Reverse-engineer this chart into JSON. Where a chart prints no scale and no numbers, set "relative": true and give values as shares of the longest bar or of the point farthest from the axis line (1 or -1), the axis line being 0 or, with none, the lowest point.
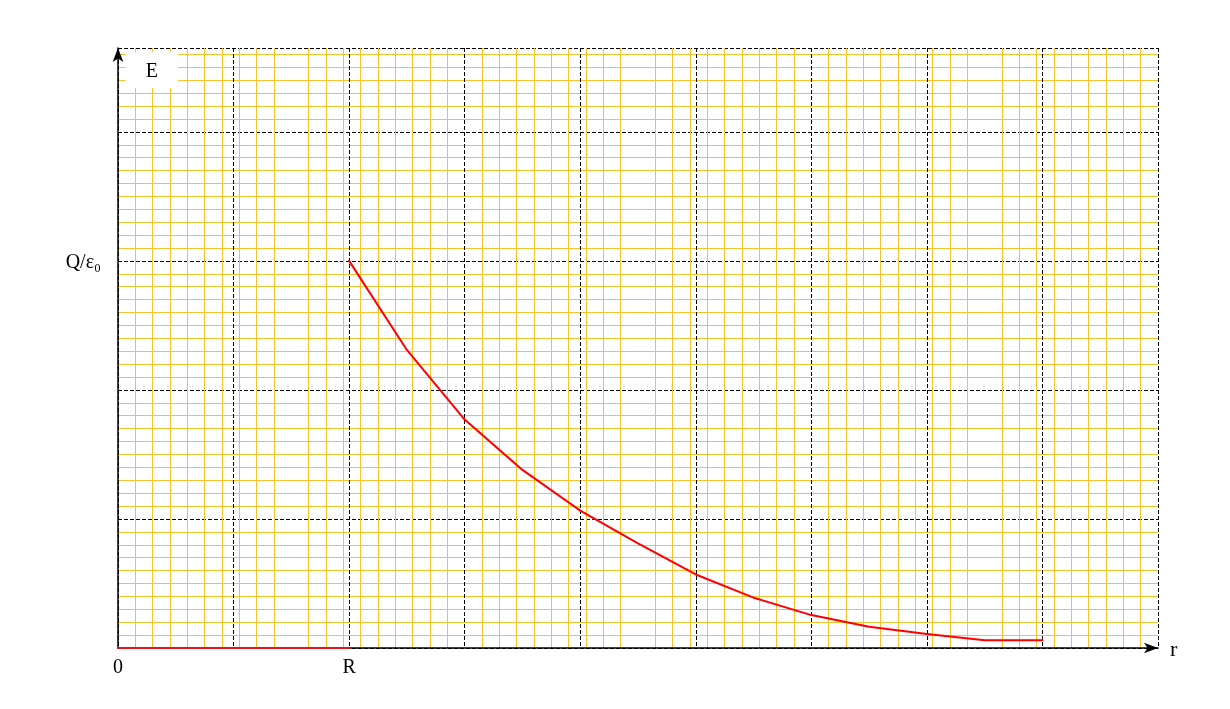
{
  "chart_data": {
    "type": "line",
    "xlabel": "r",
    "relative": true,
    "annotations": [
      "Q/ε₀",
      "E"
    ],
    "categories": [
      "0",
      null,
      null,
      null,
      "R",
      null,
      null,
      null,
      null,
      null,
      null,
      null,
      null,
      null,
      null,
      null,
      null,
      null,
      null
    ],
    "series": [
      {
        "color": "#e8141c",
        "values": [
          0,
          0,
          0,
          0,
          0,
          null,
          null,
          null,
          null,
          null,
          null,
          null,
          null,
          null,
          null,
          null,
          null,
          null,
          null
        ]
      },
      {
        "color": "#ff0000",
        "values": [
          null,
          null,
          null,
          null,
          1,
          0.77,
          0.59,
          0.46,
          0.355,
          0.27,
          0.19,
          0.13,
          0.085,
          0.055,
          0.036,
          0.02,
          0.02,
          null,
          null
        ]
      }
    ],
    "grid": true,
    "marker": "none"
  }
}
